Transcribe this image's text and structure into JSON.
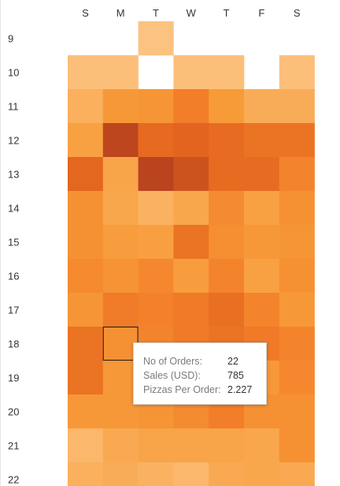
{
  "chart_data": {
    "type": "heatmap",
    "x_categories": [
      "S",
      "M",
      "T",
      "W",
      "T",
      "F",
      "S"
    ],
    "y_categories": [
      "9",
      "10",
      "11",
      "12",
      "13",
      "14",
      "15",
      "16",
      "17",
      "18",
      "19",
      "20",
      "21",
      "22"
    ],
    "color_scale": [
      "#fdc78a",
      "#fab261",
      "#f79b39",
      "#f4812a",
      "#e2641e",
      "#b6411e"
    ],
    "values": [
      [
        null,
        null,
        0.05,
        null,
        null,
        null,
        null
      ],
      [
        0.08,
        0.08,
        null,
        0.08,
        0.08,
        null,
        0.08
      ],
      [
        0.22,
        0.42,
        0.45,
        0.62,
        0.4,
        0.25,
        0.25
      ],
      [
        0.35,
        0.97,
        0.76,
        0.8,
        0.75,
        0.7,
        0.7
      ],
      [
        0.78,
        0.32,
        0.98,
        0.9,
        0.75,
        0.75,
        0.58
      ],
      [
        0.48,
        0.3,
        0.2,
        0.3,
        0.52,
        0.35,
        0.48
      ],
      [
        0.48,
        0.38,
        0.36,
        0.7,
        0.5,
        0.42,
        0.45
      ],
      [
        0.53,
        0.46,
        0.55,
        0.38,
        0.58,
        0.35,
        0.48
      ],
      [
        0.45,
        0.64,
        0.6,
        0.65,
        0.72,
        0.58,
        0.42
      ],
      [
        0.7,
        0.48,
        0.58,
        0.65,
        0.7,
        0.65,
        0.58
      ],
      [
        0.7,
        0.42,
        0.45,
        0.55,
        0.58,
        0.42,
        0.55
      ],
      [
        0.42,
        0.42,
        0.45,
        0.52,
        0.62,
        0.48,
        0.48
      ],
      [
        0.15,
        0.28,
        0.32,
        0.32,
        0.32,
        0.3,
        0.48
      ],
      [
        0.22,
        0.25,
        0.2,
        0.15,
        0.28,
        0.3,
        0.28
      ]
    ],
    "highlighted_cell": {
      "row": "18",
      "col_index": 1
    },
    "tooltip": {
      "rows": [
        {
          "label": "No of Orders:",
          "value": "22"
        },
        {
          "label": "Sales (USD):",
          "value": "785"
        },
        {
          "label": "Pizzas Per Order:",
          "value": "2.227"
        }
      ]
    }
  }
}
